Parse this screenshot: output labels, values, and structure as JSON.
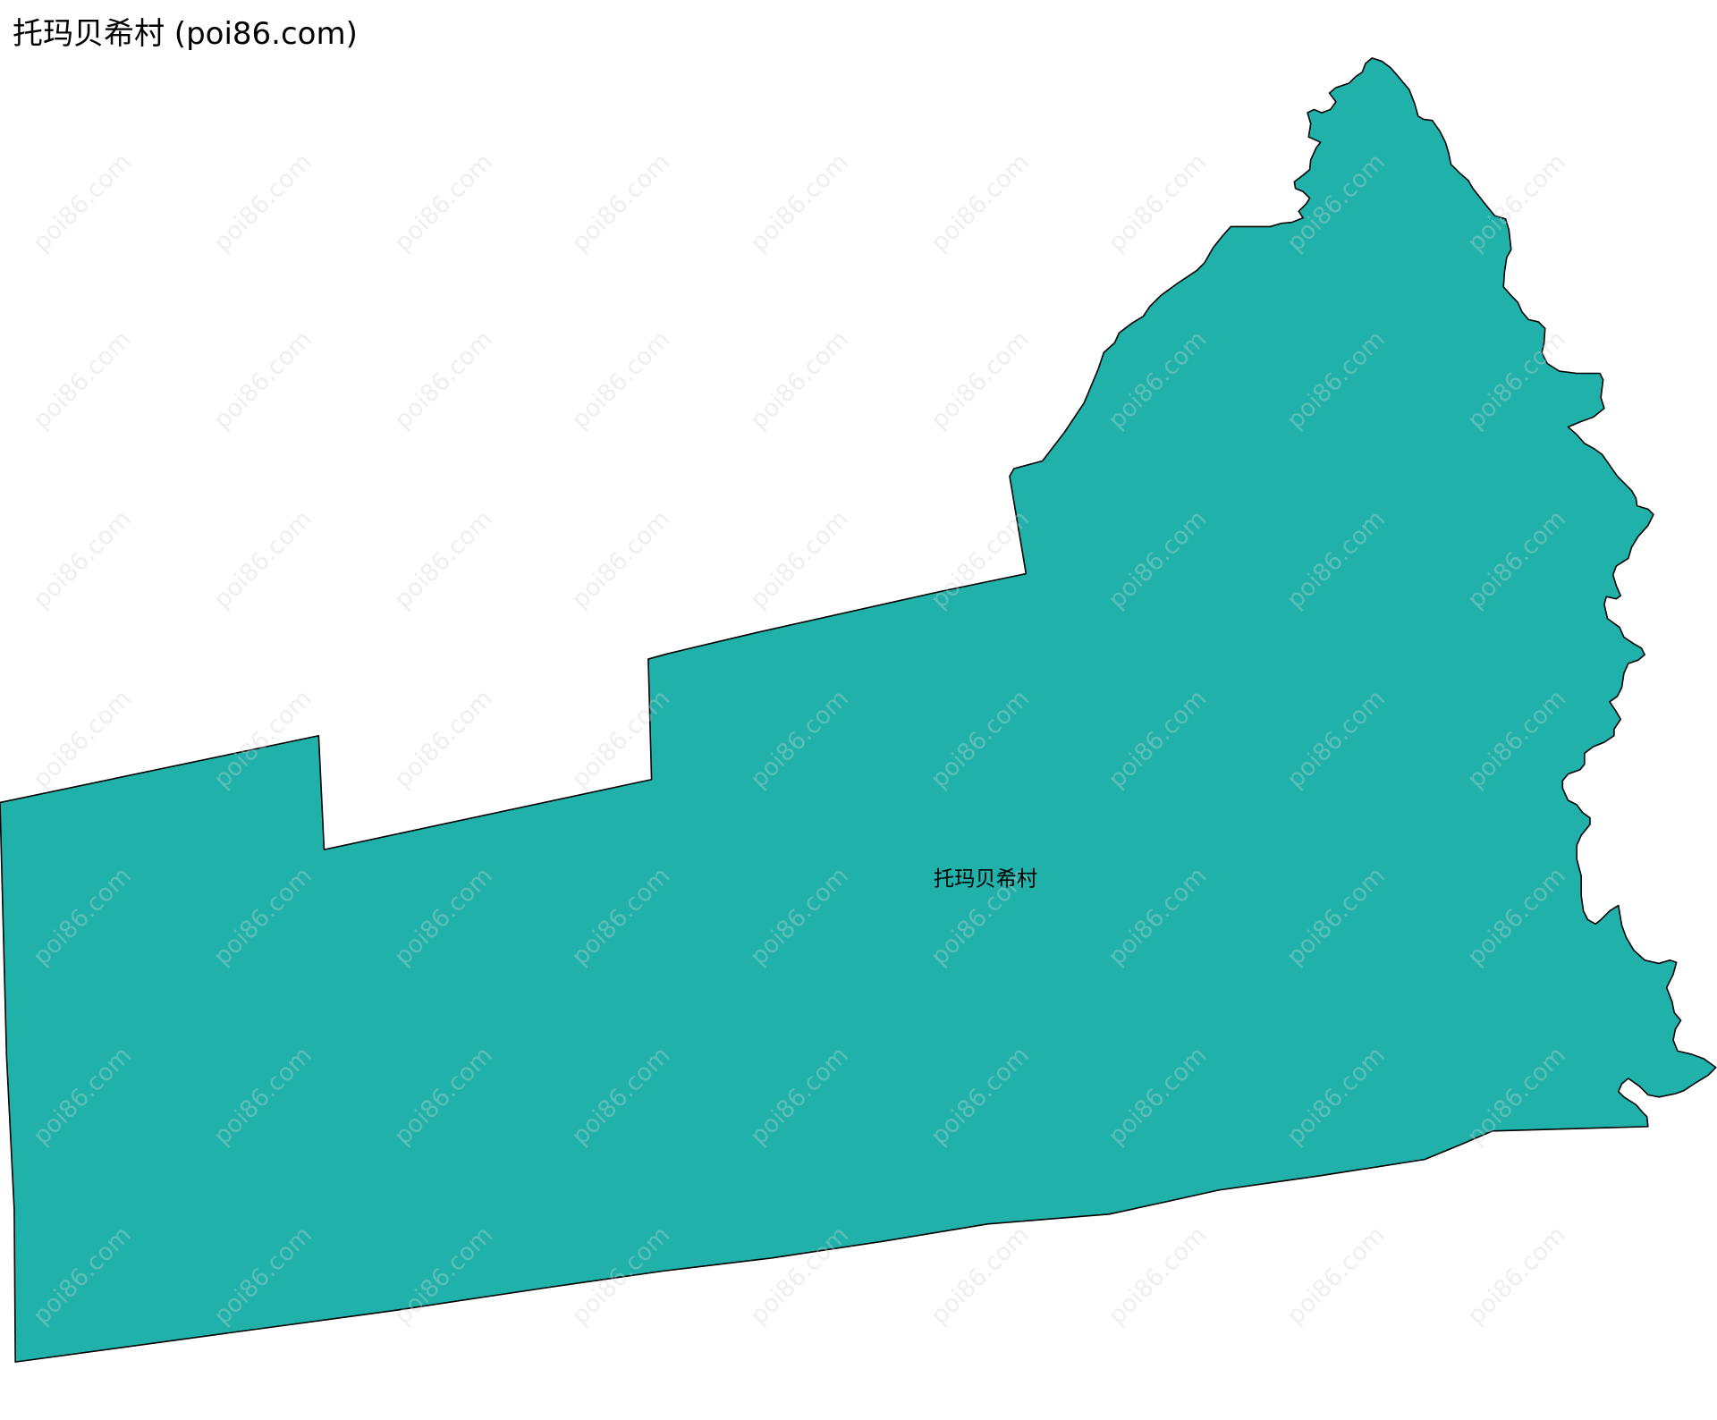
{
  "title": "托玛贝希村 (poi86.com)",
  "map": {
    "region_name": "托玛贝希村",
    "fill_color": "#20b2aa",
    "stroke_color": "#000000",
    "watermark": "poi86.com"
  }
}
